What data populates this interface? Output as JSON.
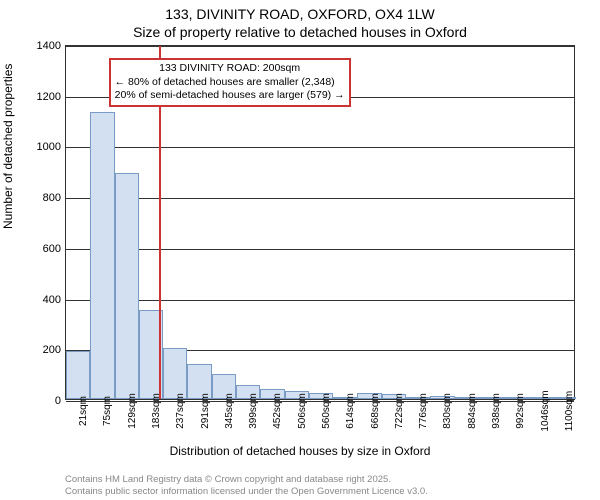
{
  "header": {
    "title_main": "133, DIVINITY ROAD, OXFORD, OX4 1LW",
    "title_sub": "Size of property relative to detached houses in Oxford"
  },
  "chart": {
    "type": "histogram",
    "y_axis": {
      "title": "Number of detached properties",
      "min": 0,
      "max": 1400,
      "tick_step": 200,
      "ticks": [
        0,
        200,
        400,
        600,
        800,
        1000,
        1200,
        1400
      ]
    },
    "x_axis": {
      "title": "Distribution of detached houses by size in Oxford",
      "tick_labels": [
        "21sqm",
        "75sqm",
        "129sqm",
        "183sqm",
        "237sqm",
        "291sqm",
        "345sqm",
        "399sqm",
        "452sqm",
        "506sqm",
        "560sqm",
        "614sqm",
        "668sqm",
        "722sqm",
        "776sqm",
        "830sqm",
        "884sqm",
        "938sqm",
        "992sqm",
        "1046sqm",
        "1100sqm"
      ]
    },
    "bars": {
      "values": [
        190,
        1130,
        890,
        350,
        200,
        140,
        100,
        55,
        40,
        30,
        22,
        3,
        22,
        18,
        3,
        10,
        3,
        8,
        3,
        3,
        3
      ],
      "fill_color": "#d2e0f2",
      "border_color": "#7a9bc4",
      "bar_width_frac": 1.0
    },
    "marker": {
      "value_sqm": 200,
      "color": "#cc3333"
    },
    "annotation": {
      "line1": "133 DIVINITY ROAD: 200sqm",
      "line2": "← 80% of detached houses are smaller (2,348)",
      "line3": "20% of semi-detached houses are larger (579) →",
      "border_color": "#cc3333",
      "background": "#ffffff"
    },
    "background_color": "#ffffff",
    "grid_color": "#333333",
    "label_fontsize": 11,
    "title_fontsize": 14
  },
  "footer": {
    "line1": "Contains HM Land Registry data © Crown copyright and database right 2025.",
    "line2": "Contains public sector information licensed under the Open Government Licence v3.0."
  }
}
